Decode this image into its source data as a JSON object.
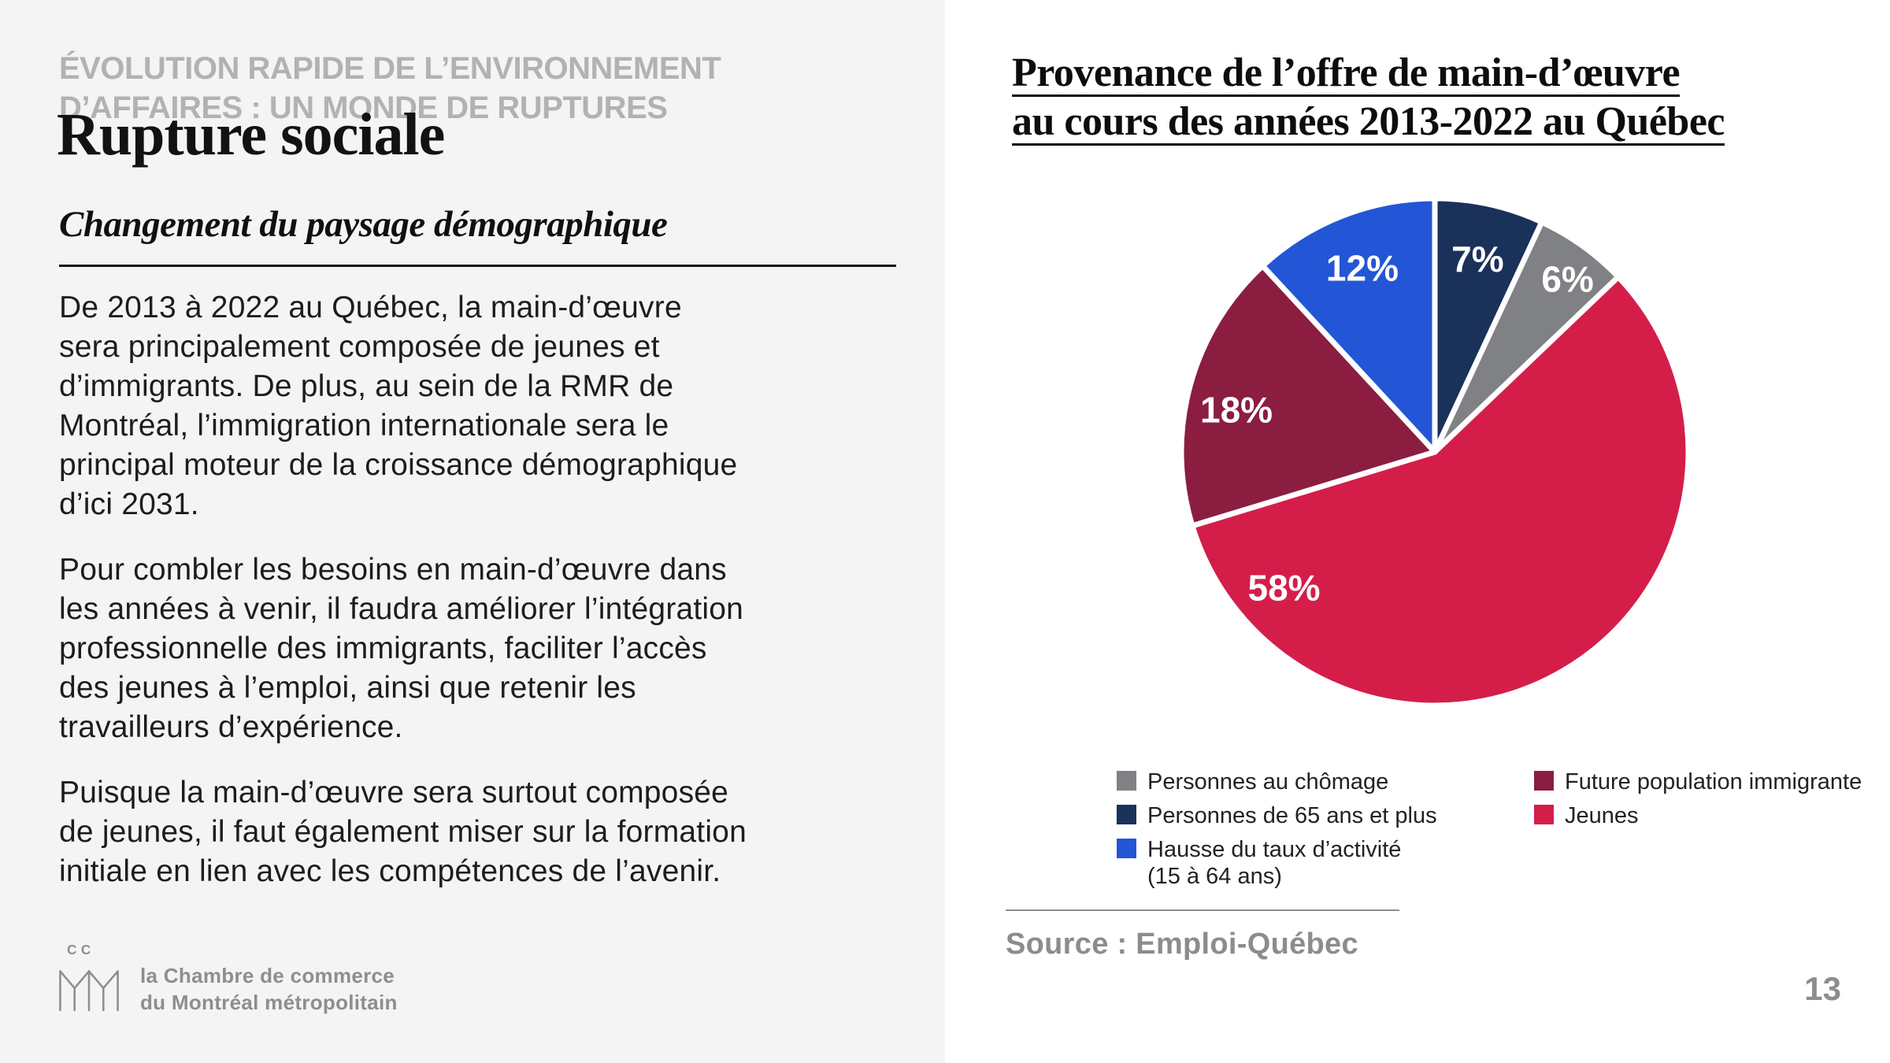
{
  "slide": {
    "eyebrow": "ÉVOLUTION RAPIDE DE L’ENVIRONNEMENT\nD’AFFAIRES : UN MONDE DE RUPTURES",
    "title": "Rupture sociale",
    "subtitle": "Changement du paysage démographique",
    "paragraphs": [
      "De 2013 à 2022 au Québec, la main-d’œuvre\nsera principalement composée de jeunes et\nd’immigrants. De plus, au sein de la RMR de\nMontréal, l’immigration internationale sera le\nprincipal moteur de la croissance démographique\nd’ici 2031.",
      "Pour combler les besoins en main-d’œuvre dans\nles années à venir, il faudra améliorer l’intégration\nprofessionnelle des immigrants, faciliter l’accès\ndes jeunes à l’emploi, ainsi que retenir les\ntravailleurs d’expérience.",
      "Puisque la main-d’œuvre sera surtout composée\nde jeunes, il faut également miser sur la formation\ninitiale en lien avec les compétences de l’avenir."
    ],
    "page_number": "13"
  },
  "logo": {
    "monogram_top": "CC",
    "text": "la Chambre de commerce\ndu Montréal métropolitain"
  },
  "chart": {
    "source_label": "Source : Emploi-Québec"
  },
  "chart_data": {
    "type": "pie",
    "title": "Provenance de l’offre de main-d’œuvre\nau cours des années 2013-2022 au Québec",
    "start_at": "12-oclock, clockwise",
    "slices": [
      {
        "label": "Personnes de 65 ans et plus",
        "value": 7,
        "pct_label": "7%",
        "color": "#1a315a",
        "label_angle": 12.5,
        "label_r": 0.78
      },
      {
        "label": "Personnes au chômage",
        "value": 6,
        "pct_label": "6%",
        "color": "#808184",
        "label_angle": 37.5,
        "label_r": 0.86
      },
      {
        "label": "Jeunes",
        "value": 58,
        "pct_label": "58%",
        "color": "#d41e49",
        "label_angle": 228,
        "label_r": 0.8
      },
      {
        "label": "Future population immigrante",
        "value": 18,
        "pct_label": "18%",
        "color": "#8b1e40",
        "label_angle": 282,
        "label_r": 0.8
      },
      {
        "label": "Hausse du taux d’activité (15 à 64 ans)",
        "value": 12,
        "pct_label": "12%",
        "color": "#2356d7",
        "label_angle": 338.5,
        "label_r": 0.78
      }
    ],
    "legend_position": "below",
    "legend_columns": [
      [
        {
          "label": "Personnes au chômage",
          "color": "#808184"
        },
        {
          "label": "Personnes de 65 ans et plus",
          "color": "#1a315a"
        },
        {
          "label": "Hausse du taux d’activité\n(15 à 64 ans)",
          "color": "#2356d7"
        }
      ],
      [
        {
          "label": "Future population immigrante",
          "color": "#8b1e40"
        },
        {
          "label": "Jeunes",
          "color": "#d41e49"
        }
      ]
    ],
    "source": "Source : Emploi-Québec"
  }
}
